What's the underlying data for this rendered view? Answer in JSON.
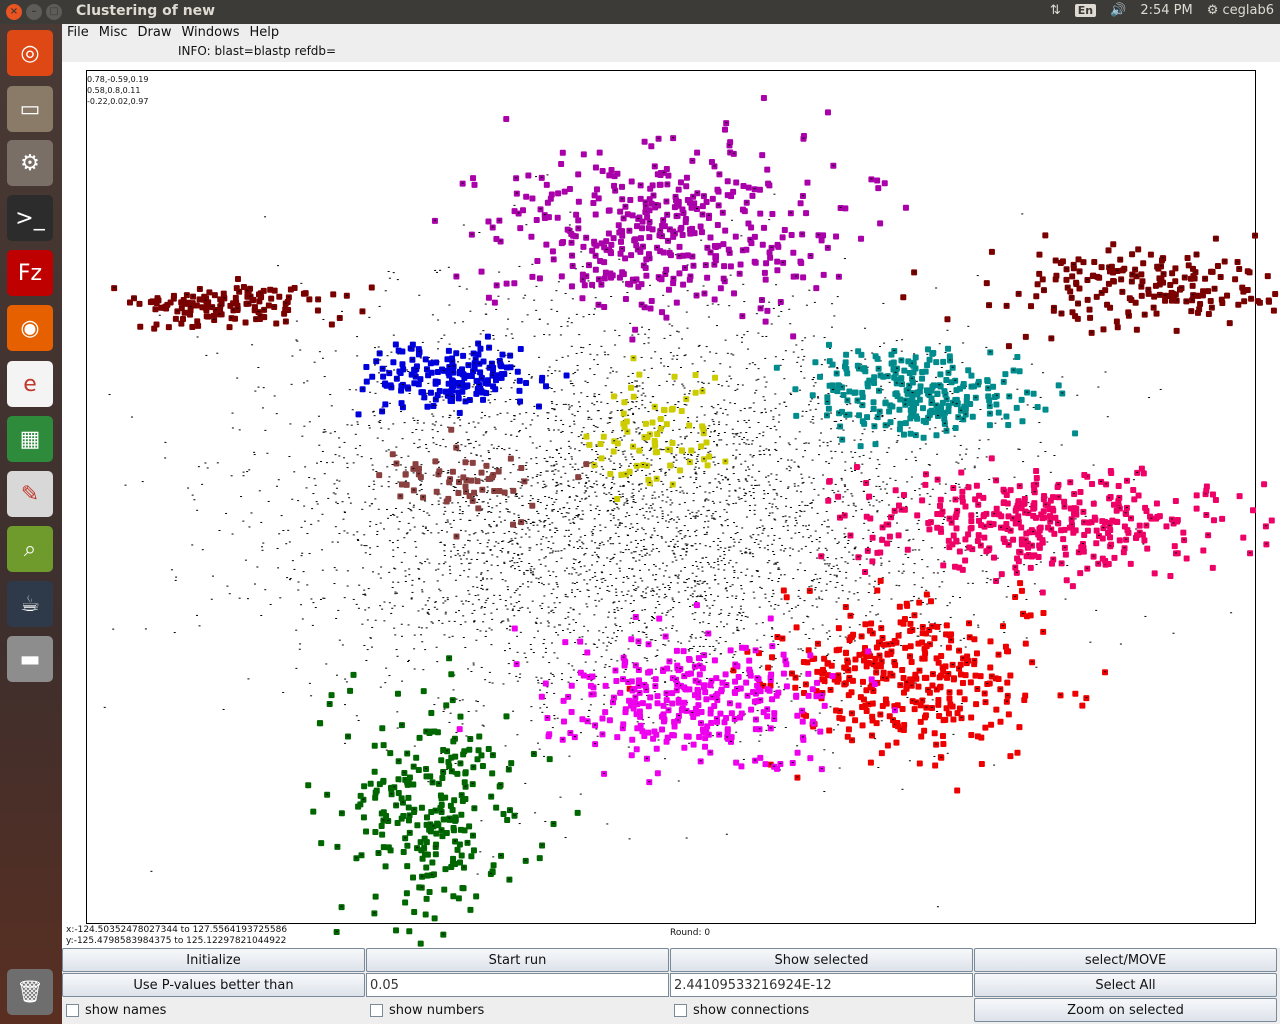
{
  "window": {
    "title": "Clustering of new"
  },
  "system": {
    "keyboard": "En",
    "clock": "2:54 PM",
    "user": "ceglab6"
  },
  "launcher": {
    "items": [
      {
        "name": "ubuntu-dash-icon",
        "glyph": "◎",
        "color": "#dd4814"
      },
      {
        "name": "files-icon",
        "glyph": "▭",
        "color": "#8a7a68"
      },
      {
        "name": "system-settings-icon",
        "glyph": "⚙",
        "color": "#7a6f66"
      },
      {
        "name": "terminal-icon",
        "glyph": ">_",
        "color": "#2c2c2c"
      },
      {
        "name": "filezilla-icon",
        "glyph": "Fz",
        "color": "#bf0000"
      },
      {
        "name": "firefox-icon",
        "glyph": "◉",
        "color": "#e66000"
      },
      {
        "name": "document-viewer-icon",
        "glyph": "e",
        "color": "#f4f4f4"
      },
      {
        "name": "spreadsheet-icon",
        "glyph": "▦",
        "color": "#2e8b3c"
      },
      {
        "name": "text-editor-icon",
        "glyph": "✎",
        "color": "#d8d8d8"
      },
      {
        "name": "image-viewer-icon",
        "glyph": "⌕",
        "color": "#6f9a2c"
      },
      {
        "name": "java-app-icon",
        "glyph": "☕",
        "color": "#2e3a4a"
      },
      {
        "name": "drive-icon",
        "glyph": "▬",
        "color": "#8d8d8d"
      },
      {
        "name": "trash-icon",
        "glyph": "🗑",
        "color": "#6e6e6e"
      }
    ]
  },
  "menubar": {
    "items": [
      "File",
      "Misc",
      "Draw",
      "Windows",
      "Help"
    ]
  },
  "info_line": "INFO: blast=blastp  refdb=",
  "plot": {
    "projection": [
      "0.78,-0.59,0.19",
      "0.58,0.8,0.11",
      "-0.22,0.02,0.97"
    ],
    "x_range": "x:-124.50352478027344 to 127.5564193725586",
    "y_range": "y:-125.4798583984375 to 125.12297821044922",
    "round": "Round: 0"
  },
  "chart_data": {
    "type": "scatter",
    "clusters": [
      {
        "color": "#aa00aa",
        "cx": 0.0,
        "cy": 78.0,
        "sx": 18.0,
        "sy": 12.0,
        "n": 420
      },
      {
        "color": "#0000dd",
        "cx": -46.0,
        "cy": 36.0,
        "sx": 9.0,
        "sy": 5.0,
        "n": 180
      },
      {
        "color": "#008c8c",
        "cx": 55.0,
        "cy": 30.0,
        "sx": 11.0,
        "sy": 6.0,
        "n": 260
      },
      {
        "color": "#ee0066",
        "cx": 82.0,
        "cy": -8.0,
        "sx": 20.0,
        "sy": 7.0,
        "n": 380
      },
      {
        "color": "#ee0000",
        "cx": 52.0,
        "cy": -52.0,
        "sx": 14.0,
        "sy": 11.0,
        "n": 360
      },
      {
        "color": "#ee00ee",
        "cx": 6.0,
        "cy": -60.0,
        "sx": 15.0,
        "sy": 9.0,
        "n": 320
      },
      {
        "color": "#006600",
        "cx": -52.0,
        "cy": -92.0,
        "sx": 10.0,
        "sy": 17.0,
        "n": 260
      },
      {
        "color": "#7a0000",
        "cx": -95.0,
        "cy": 57.0,
        "sx": 10.0,
        "sy": 3.0,
        "n": 140
      },
      {
        "color": "#7a0000",
        "cx": 104.0,
        "cy": 61.0,
        "sx": 16.0,
        "sy": 6.0,
        "n": 200
      },
      {
        "color": "#cccc00",
        "cx": -3.0,
        "cy": 17.0,
        "sx": 8.0,
        "sy": 9.0,
        "n": 80
      },
      {
        "color": "#8b4040",
        "cx": -45.0,
        "cy": 4.0,
        "sx": 10.0,
        "sy": 6.0,
        "n": 60
      }
    ],
    "noise_points": 4200,
    "xlim": [
      -124.50352478027344,
      127.5564193725586
    ],
    "ylim": [
      -125.4798583984375,
      125.12297821044922
    ]
  },
  "controls": {
    "row1": [
      "Initialize",
      "Start run",
      "Show selected",
      "select/MOVE"
    ],
    "row2": {
      "pvalue_label": "Use P-values better than",
      "pvalue": "0.05",
      "current": "2.44109533216924E-12",
      "select_all": "Select All"
    },
    "row3": {
      "show_names": "show names",
      "show_numbers": "show numbers",
      "show_connections": "show connections",
      "zoom": "Zoom on selected"
    }
  }
}
